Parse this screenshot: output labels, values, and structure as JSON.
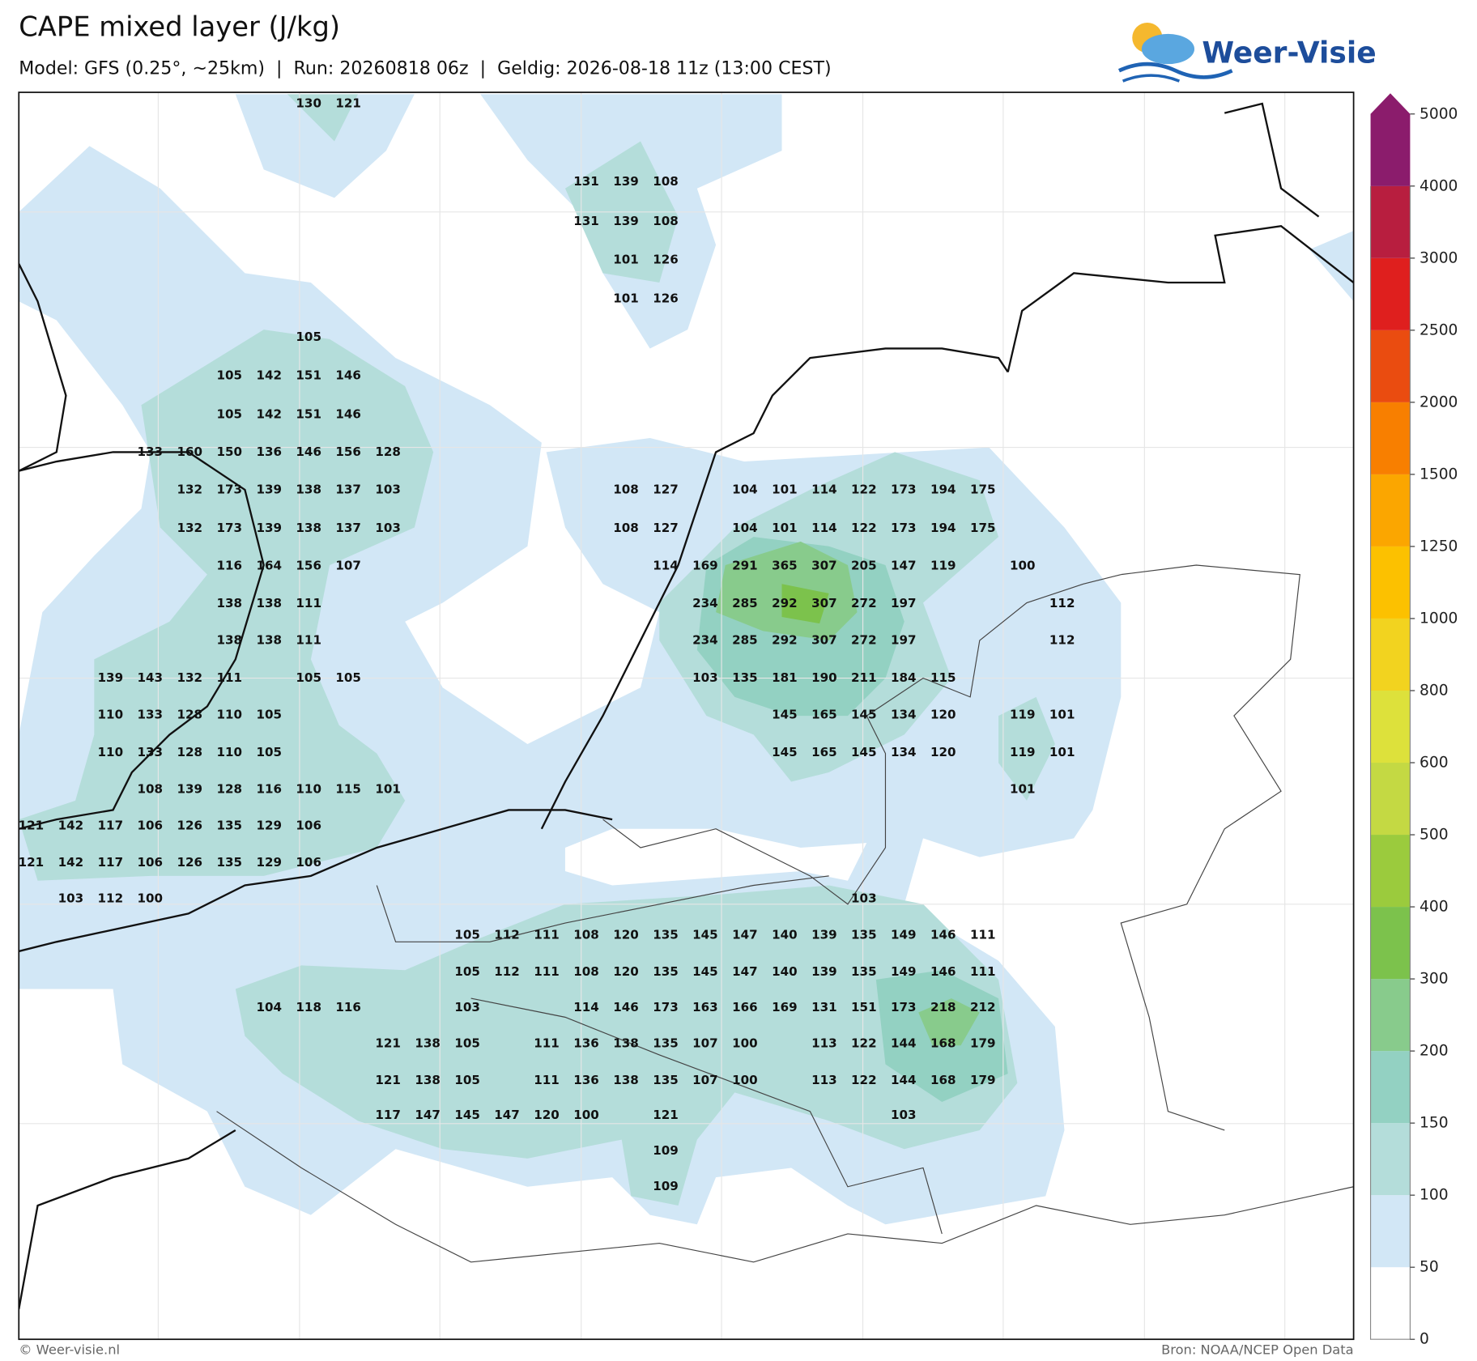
{
  "title": "CAPE mixed layer (J/kg)",
  "subtitle": "Model: GFS (0.25°, ~25km)  |  Run: 20260818 06z  |  Geldig: 2026-08-18 11z (13:00 CEST)",
  "logo": "Weer-Visie",
  "footer_left": "© Weer-visie.nl",
  "footer_right": "Bron: NOAA/NCEP Open Data",
  "colorbar": {
    "ticks": [
      0,
      50,
      100,
      150,
      200,
      300,
      400,
      500,
      600,
      800,
      1000,
      1250,
      1500,
      2000,
      2500,
      3000,
      4000,
      5000
    ],
    "colors": [
      "#ffffff",
      "#d2e7f6",
      "#b4ddda",
      "#93d1c2",
      "#88cb8c",
      "#7cc24c",
      "#9bcb3d",
      "#c4d943",
      "#dde13b",
      "#f2d31f",
      "#fcc100",
      "#fba600",
      "#f87f00",
      "#ea4c10",
      "#df1f1e",
      "#b81e3f",
      "#8b1c6c"
    ]
  },
  "grid_values": [
    [
      130,
      121
    ],
    [
      131,
      139,
      108
    ],
    [
      131,
      139,
      108
    ],
    [
      101,
      126
    ],
    [
      101,
      126
    ],
    [
      105
    ],
    [
      105,
      142,
      151,
      146
    ],
    [
      105,
      142,
      151,
      146
    ],
    [
      133,
      160,
      150,
      136,
      146,
      156,
      128
    ],
    [
      132,
      173,
      139,
      138,
      137,
      103,
      108,
      127,
      104,
      101,
      114,
      122,
      173,
      194,
      175
    ],
    [
      132,
      173,
      139,
      138,
      137,
      103,
      108,
      127,
      104,
      101,
      114,
      122,
      173,
      194,
      175
    ],
    [
      116,
      164,
      156,
      107,
      114,
      169,
      291,
      365,
      307,
      205,
      147,
      119,
      100
    ],
    [
      138,
      138,
      111,
      234,
      285,
      292,
      307,
      272,
      197,
      112
    ],
    [
      138,
      138,
      111,
      234,
      285,
      292,
      307,
      272,
      197,
      112
    ],
    [
      139,
      143,
      132,
      111,
      105,
      105,
      103,
      135,
      181,
      190,
      211,
      184,
      115
    ],
    [
      110,
      133,
      128,
      110,
      105,
      145,
      165,
      145,
      134,
      120,
      119,
      101
    ],
    [
      110,
      133,
      128,
      110,
      105,
      145,
      165,
      145,
      134,
      120,
      119,
      101
    ],
    [
      108,
      139,
      128,
      116,
      110,
      115,
      101,
      101
    ],
    [
      121,
      142,
      117,
      106,
      126,
      135,
      129,
      106
    ],
    [
      121,
      142,
      117,
      106,
      126,
      135,
      129,
      106
    ],
    [
      103,
      112,
      100,
      103
    ],
    [
      105,
      112,
      111,
      108,
      120,
      135,
      145,
      147,
      140,
      139,
      135,
      149,
      146,
      111
    ],
    [
      105,
      112,
      111,
      108,
      120,
      135,
      145,
      147,
      140,
      139,
      135,
      149,
      146,
      111
    ],
    [
      104,
      118,
      116,
      103,
      114,
      146,
      173,
      163,
      166,
      169,
      131,
      151,
      173,
      218,
      212
    ],
    [
      121,
      138,
      105,
      111,
      136,
      138,
      135,
      107,
      100,
      113,
      122,
      144,
      168,
      179
    ],
    [
      121,
      138,
      105,
      111,
      136,
      138,
      135,
      107,
      100,
      113,
      122,
      144,
      168,
      179
    ],
    [
      117,
      147,
      145,
      147,
      120,
      100,
      121,
      103
    ],
    [
      109
    ],
    [
      109
    ]
  ]
}
